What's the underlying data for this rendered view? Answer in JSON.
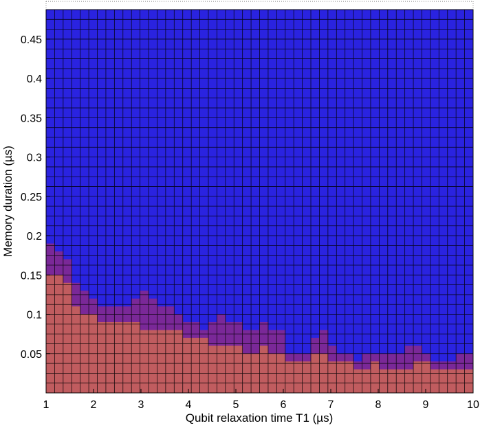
{
  "chart_data": {
    "type": "heatmap",
    "title": "",
    "xlabel": "Qubit relaxation time T1 (µs)",
    "ylabel": "Memory duration (µs)",
    "xlim": [
      1,
      10
    ],
    "ylim": [
      0,
      0.4875
    ],
    "x_ticks": [
      1,
      2,
      3,
      4,
      5,
      6,
      7,
      8,
      9,
      10
    ],
    "x_tick_labels": [
      "1",
      "2",
      "3",
      "4",
      "5",
      "6",
      "7",
      "8",
      "9",
      "10"
    ],
    "y_ticks": [
      0.05,
      0.1,
      0.15,
      0.2,
      0.25,
      0.3,
      0.35,
      0.4,
      0.45
    ],
    "y_tick_labels": [
      "0.05",
      "0.1",
      "0.15",
      "0.2",
      "0.25",
      "0.3",
      "0.35",
      "0.4",
      "0.45"
    ],
    "grid": true,
    "columns": 50,
    "rows": 39,
    "cell_height": 0.0125,
    "colors": {
      "low": "#c05c5f",
      "mid": "#7a2898",
      "high": "#2a23e0",
      "grid_line": "#000000"
    },
    "red_top_per_column": [
      0.15,
      0.15,
      0.14,
      0.11,
      0.1,
      0.1,
      0.09,
      0.09,
      0.09,
      0.09,
      0.09,
      0.08,
      0.08,
      0.08,
      0.08,
      0.08,
      0.07,
      0.07,
      0.07,
      0.06,
      0.06,
      0.06,
      0.06,
      0.05,
      0.05,
      0.06,
      0.05,
      0.05,
      0.04,
      0.04,
      0.04,
      0.05,
      0.05,
      0.04,
      0.04,
      0.04,
      0.03,
      0.03,
      0.04,
      0.03,
      0.03,
      0.03,
      0.03,
      0.04,
      0.04,
      0.03,
      0.03,
      0.03,
      0.03,
      0.03
    ],
    "purple_top_per_column": [
      0.19,
      0.18,
      0.17,
      0.14,
      0.13,
      0.12,
      0.11,
      0.11,
      0.11,
      0.11,
      0.12,
      0.13,
      0.12,
      0.11,
      0.11,
      0.1,
      0.09,
      0.09,
      0.08,
      0.09,
      0.1,
      0.09,
      0.09,
      0.08,
      0.08,
      0.09,
      0.08,
      0.08,
      0.05,
      0.05,
      0.05,
      0.07,
      0.08,
      0.06,
      0.05,
      0.05,
      0.04,
      0.05,
      0.05,
      0.05,
      0.05,
      0.05,
      0.06,
      0.06,
      0.05,
      0.04,
      0.04,
      0.04,
      0.05,
      0.05
    ]
  }
}
